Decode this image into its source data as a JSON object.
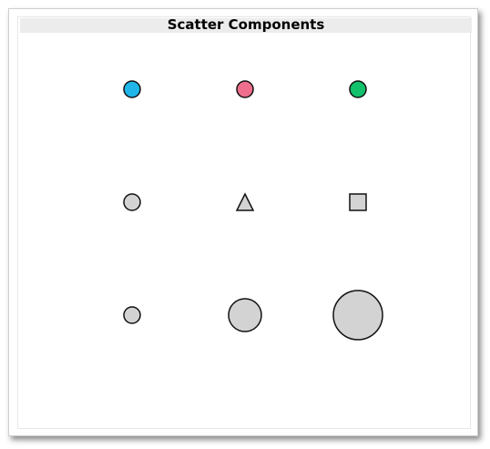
{
  "chart_data": {
    "type": "scatter",
    "title": "Scatter Components",
    "xlabel": "",
    "ylabel": "",
    "grid": false,
    "axes_visible": false,
    "xlim": [
      0,
      4
    ],
    "ylim": [
      0,
      4
    ],
    "marker_outline_color": "#111111",
    "points": [
      {
        "id": "circle-blue",
        "x": 1,
        "y": 3,
        "marker": "circle",
        "size": 1,
        "color": "#1fb5e8"
      },
      {
        "id": "circle-pink",
        "x": 2,
        "y": 3,
        "marker": "circle",
        "size": 1,
        "color": "#f06e8d"
      },
      {
        "id": "circle-green",
        "x": 3,
        "y": 3,
        "marker": "circle",
        "size": 1,
        "color": "#13c06b"
      },
      {
        "id": "circle-gray",
        "x": 1,
        "y": 2,
        "marker": "circle",
        "size": 1,
        "color": "#d3d3d3"
      },
      {
        "id": "triangle-gray",
        "x": 2,
        "y": 2,
        "marker": "triangle",
        "size": 1,
        "color": "#d3d3d3"
      },
      {
        "id": "square-gray",
        "x": 3,
        "y": 2,
        "marker": "square",
        "size": 1,
        "color": "#d3d3d3"
      },
      {
        "id": "circle-small",
        "x": 1,
        "y": 1,
        "marker": "circle",
        "size": 1,
        "color": "#d3d3d3"
      },
      {
        "id": "circle-medium",
        "x": 2,
        "y": 1,
        "marker": "circle",
        "size": 4,
        "color": "#d3d3d3"
      },
      {
        "id": "circle-large",
        "x": 3,
        "y": 1,
        "marker": "circle",
        "size": 9,
        "color": "#d3d3d3"
      }
    ]
  }
}
